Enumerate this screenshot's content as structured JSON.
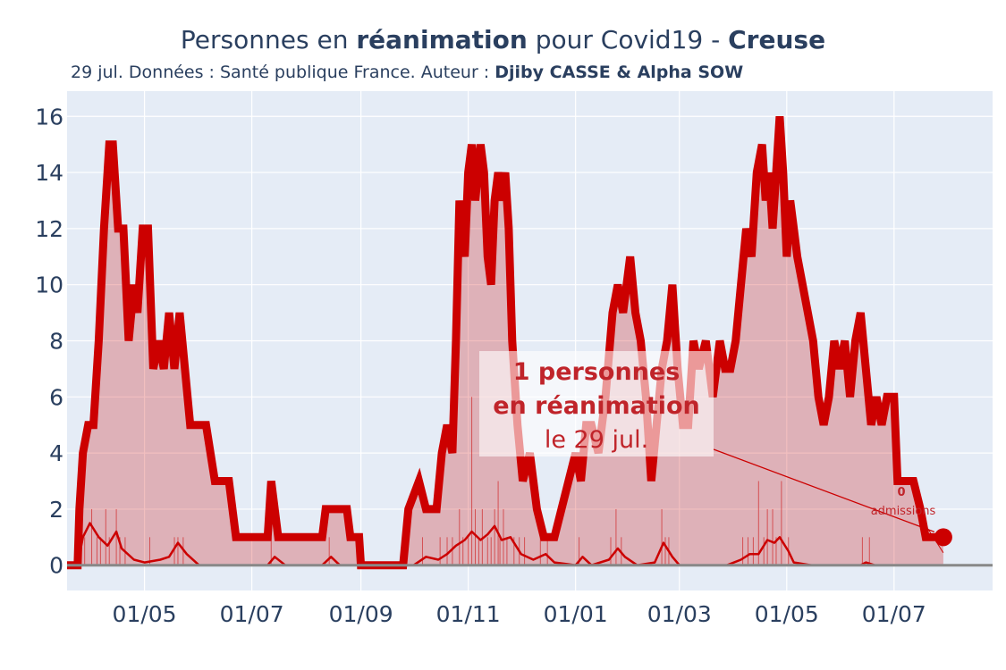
{
  "title": {
    "pre": "Personnes en ",
    "bold1": "réanimation",
    "mid": " pour Covid19 - ",
    "bold2": "Creuse"
  },
  "subtitle": {
    "text": "29 jul. Données : Santé publique France. Auteur : ",
    "bold": "Djiby CASSE & Alpha SOW"
  },
  "annotation": {
    "line1": "1 personnes",
    "line2": "en réanimation",
    "line3": "le 29 jul.",
    "admissions_value": "0",
    "admissions_label": "admissions"
  },
  "colors": {
    "main": "#cc0000",
    "fill": "rgba(204,0,0,0.25)",
    "plot_bg": "#e5ecf6",
    "grid": "#ffffff",
    "zero_line": "#888888"
  },
  "chart_data": {
    "type": "line",
    "ylim": [
      -0.9,
      16.9
    ],
    "yticks": [
      0,
      2,
      4,
      6,
      8,
      10,
      12,
      14,
      16
    ],
    "xlim": [
      "2020-03-18",
      "2021-08-26"
    ],
    "xticks": [
      {
        "date": "2020-05-01",
        "label": "01/05"
      },
      {
        "date": "2020-07-01",
        "label": "01/07"
      },
      {
        "date": "2020-09-01",
        "label": "01/09"
      },
      {
        "date": "2020-11-01",
        "label": "01/11"
      },
      {
        "date": "2021-01-01",
        "label": "01/01"
      },
      {
        "date": "2021-03-01",
        "label": "01/03"
      },
      {
        "date": "2021-05-01",
        "label": "01/05"
      },
      {
        "date": "2021-07-01",
        "label": "01/07"
      }
    ],
    "series": [
      {
        "role": "reanimation",
        "points": [
          [
            "2020-03-18",
            0
          ],
          [
            "2020-03-24",
            0
          ],
          [
            "2020-03-25",
            2
          ],
          [
            "2020-03-27",
            4
          ],
          [
            "2020-03-30",
            5
          ],
          [
            "2020-04-02",
            5
          ],
          [
            "2020-04-05",
            8
          ],
          [
            "2020-04-08",
            12
          ],
          [
            "2020-04-11",
            15
          ],
          [
            "2020-04-13",
            15
          ],
          [
            "2020-04-16",
            12
          ],
          [
            "2020-04-19",
            12
          ],
          [
            "2020-04-22",
            8
          ],
          [
            "2020-04-25",
            10
          ],
          [
            "2020-04-27",
            9
          ],
          [
            "2020-04-30",
            12
          ],
          [
            "2020-05-03",
            12
          ],
          [
            "2020-05-06",
            7
          ],
          [
            "2020-05-09",
            8
          ],
          [
            "2020-05-12",
            7
          ],
          [
            "2020-05-15",
            9
          ],
          [
            "2020-05-18",
            7
          ],
          [
            "2020-05-21",
            9
          ],
          [
            "2020-05-24",
            7
          ],
          [
            "2020-05-27",
            5
          ],
          [
            "2020-06-05",
            5
          ],
          [
            "2020-06-10",
            3
          ],
          [
            "2020-06-18",
            3
          ],
          [
            "2020-06-22",
            1
          ],
          [
            "2020-07-10",
            1
          ],
          [
            "2020-07-12",
            3
          ],
          [
            "2020-07-16",
            1
          ],
          [
            "2020-08-01",
            1
          ],
          [
            "2020-08-10",
            1
          ],
          [
            "2020-08-12",
            2
          ],
          [
            "2020-08-24",
            2
          ],
          [
            "2020-08-26",
            1
          ],
          [
            "2020-08-31",
            1
          ],
          [
            "2020-09-01",
            0
          ],
          [
            "2020-09-25",
            0
          ],
          [
            "2020-09-28",
            2
          ],
          [
            "2020-10-04",
            3
          ],
          [
            "2020-10-08",
            2
          ],
          [
            "2020-10-14",
            2
          ],
          [
            "2020-10-17",
            4
          ],
          [
            "2020-10-20",
            5
          ],
          [
            "2020-10-23",
            4
          ],
          [
            "2020-10-25",
            8
          ],
          [
            "2020-10-27",
            13
          ],
          [
            "2020-10-30",
            11
          ],
          [
            "2020-11-01",
            14
          ],
          [
            "2020-11-03",
            15
          ],
          [
            "2020-11-05",
            13
          ],
          [
            "2020-11-08",
            15
          ],
          [
            "2020-11-10",
            14
          ],
          [
            "2020-11-12",
            11
          ],
          [
            "2020-11-14",
            10
          ],
          [
            "2020-11-16",
            13
          ],
          [
            "2020-11-18",
            14
          ],
          [
            "2020-11-20",
            13
          ],
          [
            "2020-11-22",
            14
          ],
          [
            "2020-11-24",
            12
          ],
          [
            "2020-11-26",
            8
          ],
          [
            "2020-11-29",
            5
          ],
          [
            "2020-12-02",
            3
          ],
          [
            "2020-12-06",
            4
          ],
          [
            "2020-12-10",
            2
          ],
          [
            "2020-12-14",
            1
          ],
          [
            "2020-12-20",
            1
          ],
          [
            "2020-12-24",
            2
          ],
          [
            "2020-12-28",
            3
          ],
          [
            "2021-01-01",
            4
          ],
          [
            "2021-01-04",
            3
          ],
          [
            "2021-01-07",
            5
          ],
          [
            "2021-01-10",
            5
          ],
          [
            "2021-01-14",
            4
          ],
          [
            "2021-01-18",
            6
          ],
          [
            "2021-01-22",
            9
          ],
          [
            "2021-01-25",
            10
          ],
          [
            "2021-01-28",
            9
          ],
          [
            "2021-02-01",
            11
          ],
          [
            "2021-02-04",
            9
          ],
          [
            "2021-02-07",
            8
          ],
          [
            "2021-02-10",
            6
          ],
          [
            "2021-02-13",
            3
          ],
          [
            "2021-02-16",
            5
          ],
          [
            "2021-02-19",
            7
          ],
          [
            "2021-02-22",
            8
          ],
          [
            "2021-02-25",
            10
          ],
          [
            "2021-02-28",
            7
          ],
          [
            "2021-03-03",
            5
          ],
          [
            "2021-03-06",
            5
          ],
          [
            "2021-03-09",
            8
          ],
          [
            "2021-03-12",
            7
          ],
          [
            "2021-03-16",
            8
          ],
          [
            "2021-03-20",
            6
          ],
          [
            "2021-03-24",
            8
          ],
          [
            "2021-03-27",
            7
          ],
          [
            "2021-03-30",
            7
          ],
          [
            "2021-04-02",
            8
          ],
          [
            "2021-04-05",
            10
          ],
          [
            "2021-04-08",
            12
          ],
          [
            "2021-04-11",
            11
          ],
          [
            "2021-04-14",
            14
          ],
          [
            "2021-04-17",
            15
          ],
          [
            "2021-04-19",
            13
          ],
          [
            "2021-04-21",
            14
          ],
          [
            "2021-04-23",
            12
          ],
          [
            "2021-04-25",
            14
          ],
          [
            "2021-04-27",
            16
          ],
          [
            "2021-04-29",
            14
          ],
          [
            "2021-05-01",
            11
          ],
          [
            "2021-05-03",
            13
          ],
          [
            "2021-05-05",
            12
          ],
          [
            "2021-05-07",
            11
          ],
          [
            "2021-05-10",
            10
          ],
          [
            "2021-05-13",
            9
          ],
          [
            "2021-05-16",
            8
          ],
          [
            "2021-05-19",
            6
          ],
          [
            "2021-05-22",
            5
          ],
          [
            "2021-05-25",
            6
          ],
          [
            "2021-05-28",
            8
          ],
          [
            "2021-05-31",
            7
          ],
          [
            "2021-06-03",
            8
          ],
          [
            "2021-06-06",
            6
          ],
          [
            "2021-06-09",
            8
          ],
          [
            "2021-06-12",
            9
          ],
          [
            "2021-06-15",
            7
          ],
          [
            "2021-06-18",
            5
          ],
          [
            "2021-06-21",
            6
          ],
          [
            "2021-06-24",
            5
          ],
          [
            "2021-06-27",
            6
          ],
          [
            "2021-07-01",
            6
          ],
          [
            "2021-07-03",
            3
          ],
          [
            "2021-07-12",
            3
          ],
          [
            "2021-07-16",
            2
          ],
          [
            "2021-07-19",
            1
          ],
          [
            "2021-07-22",
            1
          ],
          [
            "2021-07-24",
            1
          ],
          [
            "2021-07-27",
            1
          ],
          [
            "2021-07-29",
            1
          ]
        ]
      },
      {
        "role": "admissions_smoothed",
        "points": [
          [
            "2020-03-18",
            0
          ],
          [
            "2020-03-24",
            0
          ],
          [
            "2020-03-27",
            1
          ],
          [
            "2020-03-31",
            1.5
          ],
          [
            "2020-04-05",
            1.0
          ],
          [
            "2020-04-10",
            0.7
          ],
          [
            "2020-04-15",
            1.2
          ],
          [
            "2020-04-18",
            0.6
          ],
          [
            "2020-04-25",
            0.2
          ],
          [
            "2020-05-01",
            0.1
          ],
          [
            "2020-05-10",
            0.2
          ],
          [
            "2020-05-15",
            0.3
          ],
          [
            "2020-05-20",
            0.8
          ],
          [
            "2020-05-25",
            0.4
          ],
          [
            "2020-06-01",
            0
          ],
          [
            "2020-07-10",
            0
          ],
          [
            "2020-07-14",
            0.3
          ],
          [
            "2020-07-20",
            0
          ],
          [
            "2020-08-10",
            0
          ],
          [
            "2020-08-15",
            0.3
          ],
          [
            "2020-08-20",
            0
          ],
          [
            "2020-10-01",
            0
          ],
          [
            "2020-10-08",
            0.3
          ],
          [
            "2020-10-15",
            0.2
          ],
          [
            "2020-10-20",
            0.4
          ],
          [
            "2020-10-25",
            0.7
          ],
          [
            "2020-10-30",
            0.9
          ],
          [
            "2020-11-03",
            1.2
          ],
          [
            "2020-11-08",
            0.9
          ],
          [
            "2020-11-12",
            1.1
          ],
          [
            "2020-11-16",
            1.4
          ],
          [
            "2020-11-20",
            0.9
          ],
          [
            "2020-11-25",
            1.0
          ],
          [
            "2020-12-01",
            0.4
          ],
          [
            "2020-12-08",
            0.2
          ],
          [
            "2020-12-15",
            0.4
          ],
          [
            "2020-12-20",
            0.1
          ],
          [
            "2021-01-01",
            0
          ],
          [
            "2021-01-05",
            0.3
          ],
          [
            "2021-01-10",
            0
          ],
          [
            "2021-01-20",
            0.2
          ],
          [
            "2021-01-25",
            0.6
          ],
          [
            "2021-01-29",
            0.3
          ],
          [
            "2021-02-05",
            0
          ],
          [
            "2021-02-15",
            0.1
          ],
          [
            "2021-02-20",
            0.8
          ],
          [
            "2021-02-25",
            0.3
          ],
          [
            "2021-03-01",
            0
          ],
          [
            "2021-03-28",
            0
          ],
          [
            "2021-04-05",
            0.2
          ],
          [
            "2021-04-10",
            0.4
          ],
          [
            "2021-04-15",
            0.4
          ],
          [
            "2021-04-20",
            0.9
          ],
          [
            "2021-04-24",
            0.8
          ],
          [
            "2021-04-27",
            1.0
          ],
          [
            "2021-05-02",
            0.5
          ],
          [
            "2021-05-05",
            0.1
          ],
          [
            "2021-05-15",
            0
          ],
          [
            "2021-06-12",
            0
          ],
          [
            "2021-06-15",
            0.1
          ],
          [
            "2021-06-20",
            0
          ],
          [
            "2021-07-29",
            0
          ]
        ]
      },
      {
        "role": "admissions_daily",
        "points": [
          [
            "2020-03-26",
            3
          ],
          [
            "2020-03-28",
            1
          ],
          [
            "2020-04-01",
            2
          ],
          [
            "2020-04-04",
            1
          ],
          [
            "2020-04-06",
            1
          ],
          [
            "2020-04-09",
            2
          ],
          [
            "2020-04-11",
            1
          ],
          [
            "2020-04-15",
            2
          ],
          [
            "2020-04-17",
            1
          ],
          [
            "2020-04-20",
            1
          ],
          [
            "2020-05-04",
            1
          ],
          [
            "2020-05-18",
            1
          ],
          [
            "2020-05-20",
            1
          ],
          [
            "2020-05-23",
            1
          ],
          [
            "2020-07-12",
            1
          ],
          [
            "2020-08-14",
            1
          ],
          [
            "2020-10-06",
            1
          ],
          [
            "2020-10-16",
            1
          ],
          [
            "2020-10-20",
            1
          ],
          [
            "2020-10-23",
            1
          ],
          [
            "2020-10-27",
            2
          ],
          [
            "2020-10-29",
            1
          ],
          [
            "2020-11-01",
            1
          ],
          [
            "2020-11-03",
            6
          ],
          [
            "2020-11-05",
            2
          ],
          [
            "2020-11-07",
            1
          ],
          [
            "2020-11-09",
            2
          ],
          [
            "2020-11-12",
            1
          ],
          [
            "2020-11-14",
            1
          ],
          [
            "2020-11-16",
            2
          ],
          [
            "2020-11-18",
            3
          ],
          [
            "2020-11-19",
            1
          ],
          [
            "2020-11-21",
            2
          ],
          [
            "2020-11-23",
            1
          ],
          [
            "2020-11-27",
            1
          ],
          [
            "2020-11-30",
            1
          ],
          [
            "2020-12-03",
            1
          ],
          [
            "2020-12-12",
            1
          ],
          [
            "2020-12-16",
            1
          ],
          [
            "2021-01-03",
            1
          ],
          [
            "2021-01-21",
            1
          ],
          [
            "2021-01-24",
            2
          ],
          [
            "2021-01-27",
            1
          ],
          [
            "2021-02-19",
            2
          ],
          [
            "2021-02-21",
            1
          ],
          [
            "2021-02-23",
            1
          ],
          [
            "2021-04-06",
            1
          ],
          [
            "2021-04-09",
            1
          ],
          [
            "2021-04-12",
            1
          ],
          [
            "2021-04-15",
            3
          ],
          [
            "2021-04-18",
            1
          ],
          [
            "2021-04-20",
            2
          ],
          [
            "2021-04-23",
            2
          ],
          [
            "2021-04-25",
            1
          ],
          [
            "2021-04-28",
            3
          ],
          [
            "2021-05-02",
            1
          ],
          [
            "2021-06-13",
            1
          ],
          [
            "2021-06-17",
            1
          ]
        ]
      }
    ],
    "last_point": {
      "date": "2021-07-29",
      "value": 1
    }
  }
}
